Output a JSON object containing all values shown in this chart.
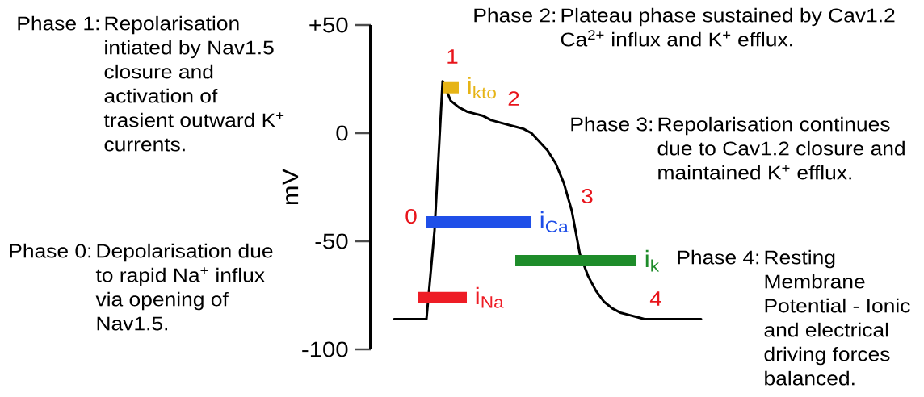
{
  "chart_data": {
    "type": "line",
    "ylabel": "mV",
    "categories": [
      null,
      null,
      null,
      null,
      null,
      null,
      null,
      null,
      null,
      null,
      null,
      null,
      null,
      null,
      null,
      null,
      null,
      null,
      null,
      null,
      null,
      null,
      null,
      null,
      null,
      null,
      null,
      null,
      null,
      null,
      null,
      null,
      null,
      null,
      null,
      null,
      null,
      null,
      null
    ],
    "series": [
      {
        "color": "#000000",
        "values": [
          -86,
          -86,
          -86,
          -86,
          -86,
          -45,
          24,
          15,
          12,
          10,
          9,
          8,
          6,
          5,
          4,
          3,
          2,
          0,
          -4,
          -8,
          -14,
          -23,
          -36,
          -56,
          -66,
          -73,
          -78,
          -81,
          -83,
          -84,
          -85,
          -86,
          -86,
          -86,
          -86,
          -86,
          -86,
          -86,
          -86
        ]
      },
      {
        "name": "i$_{Na}$",
        "color": "#ee1c25",
        "values": [
          null,
          null,
          null,
          -76,
          -76,
          -76,
          -76,
          -76,
          -76,
          -76,
          null,
          null,
          null,
          null,
          null,
          null,
          null,
          null,
          null,
          null,
          null,
          null,
          null,
          null,
          null,
          null,
          null,
          null,
          null,
          null,
          null,
          null,
          null,
          null,
          null,
          null,
          null,
          null,
          null
        ]
      },
      {
        "name": "i$_{Ca}$",
        "color": "#1f4fe8",
        "values": [
          null,
          null,
          null,
          null,
          -41,
          -41,
          -41,
          -41,
          -41,
          -41,
          -41,
          -41,
          -41,
          -41,
          -41,
          -41,
          -41,
          -41,
          null,
          null,
          null,
          null,
          null,
          null,
          null,
          null,
          null,
          null,
          null,
          null,
          null,
          null,
          null,
          null,
          null,
          null,
          null,
          null,
          null
        ]
      },
      {
        "name": "i$_{kto}$",
        "color": "#e6b416",
        "values": [
          null,
          null,
          null,
          null,
          null,
          null,
          21,
          21,
          21,
          null,
          null,
          null,
          null,
          null,
          null,
          null,
          null,
          null,
          null,
          null,
          null,
          null,
          null,
          null,
          null,
          null,
          null,
          null,
          null,
          null,
          null,
          null,
          null,
          null,
          null,
          null,
          null,
          null,
          null
        ]
      },
      {
        "name": "i$_{k}$",
        "color": "#1e8c2a",
        "values": [
          null,
          null,
          null,
          null,
          null,
          null,
          null,
          null,
          null,
          null,
          null,
          null,
          null,
          null,
          null,
          -59,
          -59,
          -59,
          -59,
          -59,
          -59,
          -59,
          -59,
          -59,
          -59,
          -59,
          -59,
          -59,
          -59,
          -59,
          -59,
          null,
          null,
          null,
          null,
          null,
          null,
          null,
          null
        ]
      }
    ],
    "ylim": [
      -100,
      50
    ],
    "yticks": [
      {
        "value": 50,
        "label": "+50"
      },
      0,
      -50,
      -100
    ],
    "tick_labels": "y",
    "grid": false,
    "marker": "none",
    "line_style": "solid",
    "annotations": [
      "0",
      "1",
      "2",
      "3",
      "4",
      "Phase 0:",
      "Depolarisation due to rapid Na$^{+}$ influx via opening of Nav1.5.",
      "Phase 1:",
      "Repolarisation intiated by Nav1.5 closure and activation of trasient outward K$^{+}$ currents.",
      "Phase 2:",
      "Plateau phase sustained by Cav1.2 Ca$^{2+}$ influx and K$^{+}$ efflux.",
      "Phase 3:",
      "Repolarisation continues due to Cav1.2 closure and maintained K$^{+}$ efflux.",
      "Phase 4:",
      "Resting Membrane Potential - Ionic and electrical driving forces balanced."
    ]
  }
}
